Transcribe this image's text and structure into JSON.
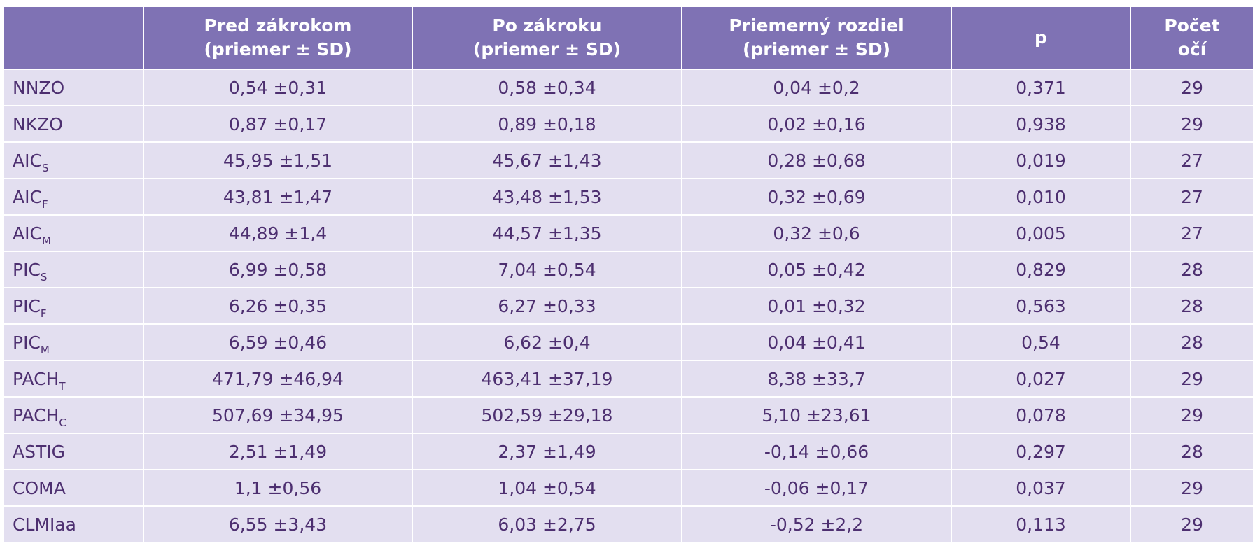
{
  "header": {
    "col0": "",
    "col1_line1": "Pred zákrokom",
    "col1_line2": "(priemer ± SD)",
    "col2_line1": "Po zákroku",
    "col2_line2": "(priemer ± SD)",
    "col3_line1": "Priemerný rozdiel",
    "col3_line2": "(priemer ± SD)",
    "col4": "p",
    "col5_line1": "Počet",
    "col5_line2": "očí"
  },
  "rows": [
    {
      "label": "NNZO",
      "sub": "",
      "before": "0,54 ±0,31",
      "after": "0,58 ±0,34",
      "diff": "0,04 ±0,2",
      "p": "0,371",
      "eyes": "29"
    },
    {
      "label": "NKZO",
      "sub": "",
      "before": "0,87 ±0,17",
      "after": "0,89 ±0,18",
      "diff": "0,02 ±0,16",
      "p": "0,938",
      "eyes": "29"
    },
    {
      "label": "AIC",
      "sub": "S",
      "before": "45,95 ±1,51",
      "after": "45,67 ±1,43",
      "diff": "0,28 ±0,68",
      "p": "0,019",
      "eyes": "27"
    },
    {
      "label": "AIC",
      "sub": "F",
      "before": "43,81 ±1,47",
      "after": "43,48 ±1,53",
      "diff": "0,32 ±0,69",
      "p": "0,010",
      "eyes": "27"
    },
    {
      "label": "AIC",
      "sub": "M",
      "before": "44,89 ±1,4",
      "after": "44,57 ±1,35",
      "diff": "0,32 ±0,6",
      "p": "0,005",
      "eyes": "27"
    },
    {
      "label": "PIC",
      "sub": "S",
      "before": "6,99 ±0,58",
      "after": "7,04 ±0,54",
      "diff": "0,05 ±0,42",
      "p": "0,829",
      "eyes": "28"
    },
    {
      "label": "PIC",
      "sub": "F",
      "before": "6,26 ±0,35",
      "after": "6,27 ±0,33",
      "diff": "0,01 ±0,32",
      "p": "0,563",
      "eyes": "28"
    },
    {
      "label": "PIC",
      "sub": "M",
      "before": "6,59 ±0,46",
      "after": "6,62 ±0,4",
      "diff": "0,04 ±0,41",
      "p": "0,54",
      "eyes": "28"
    },
    {
      "label": "PACH",
      "sub": "T",
      "before": "471,79 ±46,94",
      "after": "463,41 ±37,19",
      "diff": "8,38 ±33,7",
      "p": "0,027",
      "eyes": "29"
    },
    {
      "label": "PACH",
      "sub": "C",
      "before": "507,69 ±34,95",
      "after": "502,59 ±29,18",
      "diff": "5,10 ±23,61",
      "p": "0,078",
      "eyes": "29"
    },
    {
      "label": "ASTIG",
      "sub": "",
      "before": "2,51 ±1,49",
      "after": "2,37 ±1,49",
      "diff": "-0,14 ±0,66",
      "p": "0,297",
      "eyes": "28"
    },
    {
      "label": "COMA",
      "sub": "",
      "before": "1,1 ±0,56",
      "after": "1,04 ±0,54",
      "diff": "-0,06 ±0,17",
      "p": "0,037",
      "eyes": "29"
    },
    {
      "label": "CLMIaa",
      "sub": "",
      "before": "6,55 ±3,43",
      "after": "6,03 ±2,75",
      "diff": "-0,52 ±2,2",
      "p": "0,113",
      "eyes": "29"
    }
  ],
  "colors": {
    "header_bg": "#7f72b4",
    "header_text": "#ffffff",
    "body_bg": "#e3dff0",
    "body_text": "#4d2f70"
  }
}
